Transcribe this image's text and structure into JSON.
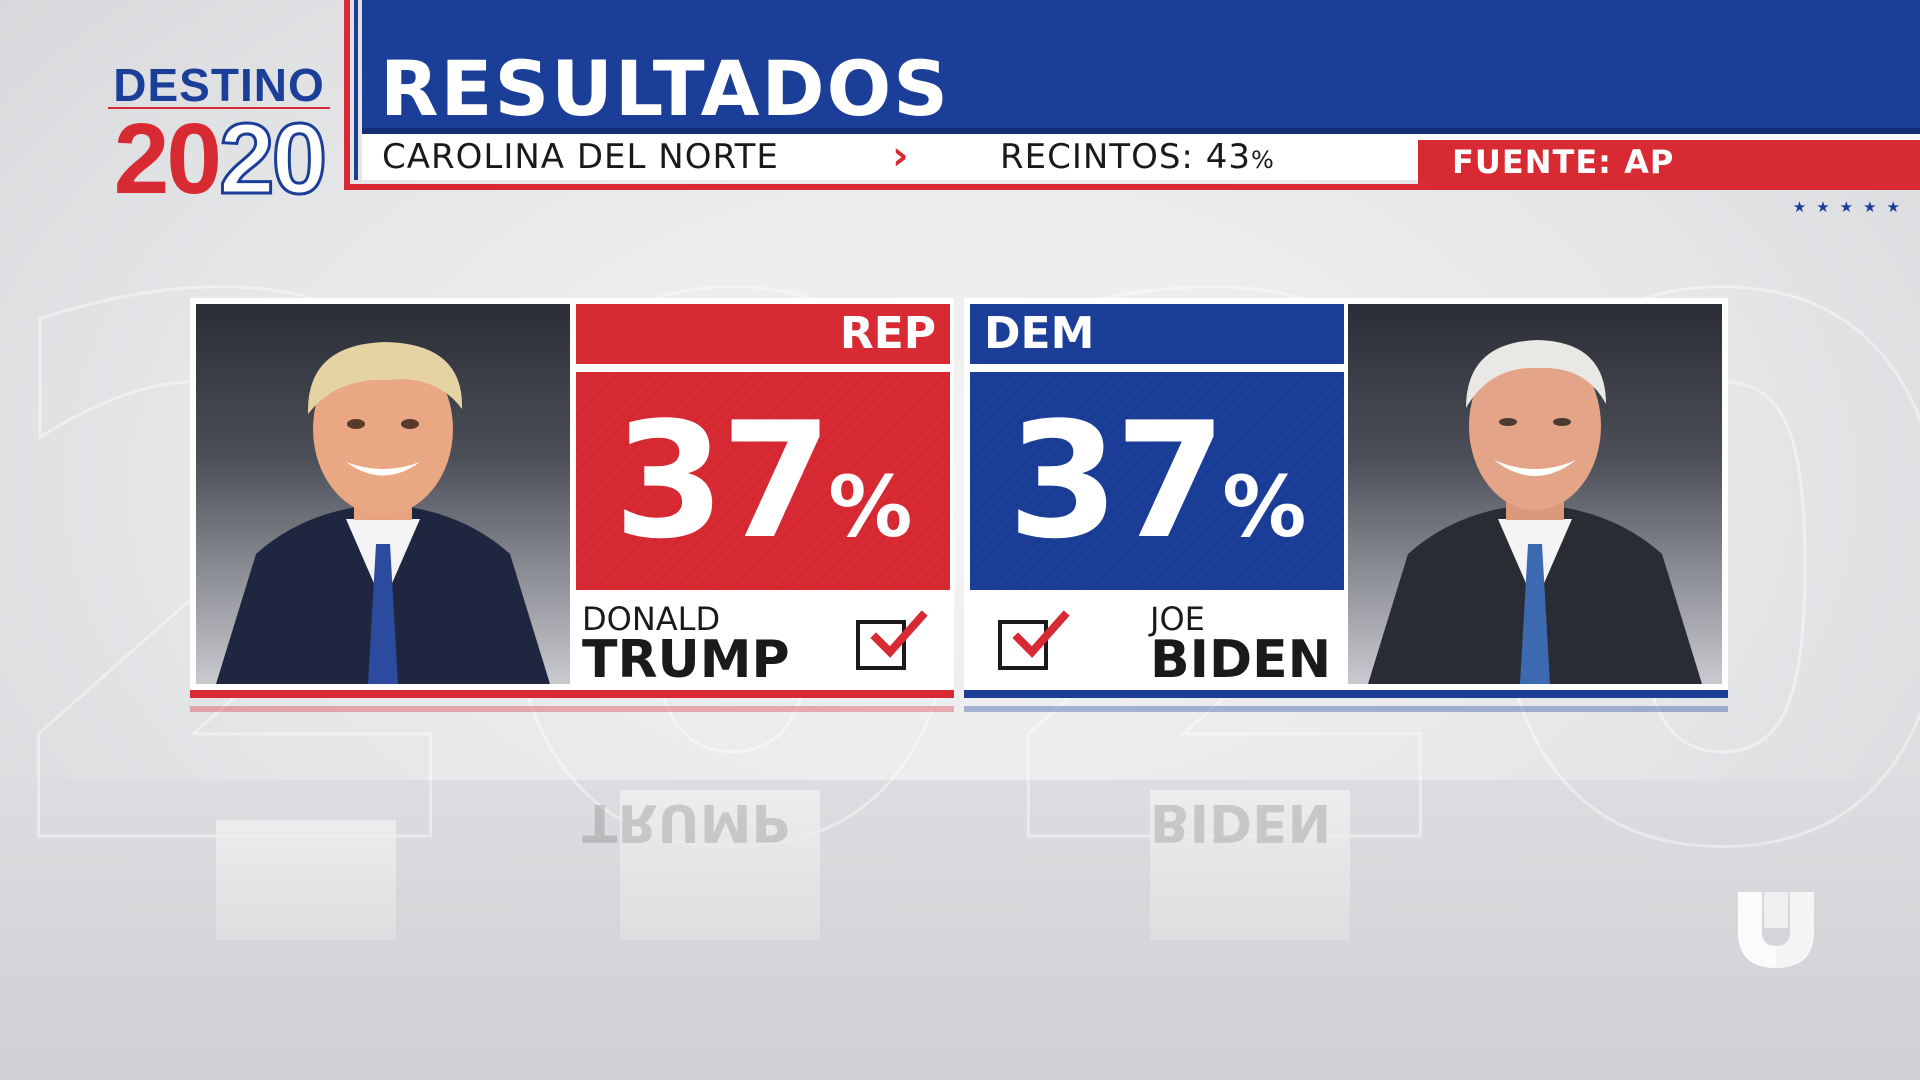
{
  "logo": {
    "word": "DESTINO",
    "year_first": "20",
    "year_second": "20",
    "alt_network": "Univision"
  },
  "header": {
    "title": "RESULTADOS",
    "state": "CAROLINA DEL NORTE",
    "precincts_label": "RECINTOS:",
    "precincts_value": "43",
    "precincts_unit": "%",
    "source": "FUENTE: AP",
    "stars": "★★★★★"
  },
  "background": {
    "ghost_text": "2020"
  },
  "candidates": [
    {
      "party": "REP",
      "percent": "37",
      "percent_sign": "%",
      "first_name": "DONALD",
      "last_name": "TRUMP",
      "checked": true,
      "color": "#d82a33"
    },
    {
      "party": "DEM",
      "percent": "37",
      "percent_sign": "%",
      "first_name": "JOE",
      "last_name": "BIDEN",
      "checked": true,
      "color": "#1b3f99"
    }
  ],
  "colors": {
    "red": "#d82a33",
    "blue": "#1b3f99",
    "white": "#ffffff"
  }
}
